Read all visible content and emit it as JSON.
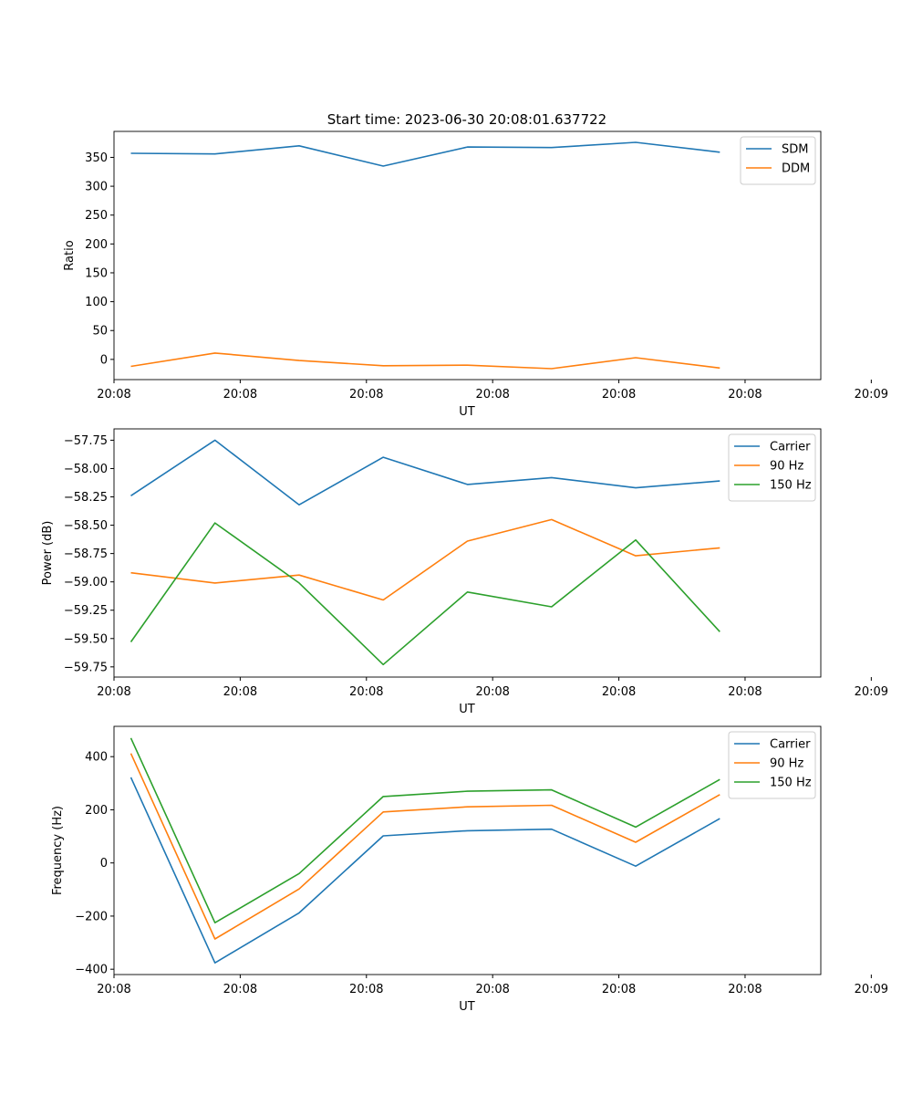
{
  "figure_title": "Start time: 2023-06-30 20:08:01.637722",
  "chart_data": [
    {
      "type": "line",
      "title": "Start time: 2023-06-30 20:08:01.637722",
      "xlabel": "UT",
      "ylabel": "Ratio",
      "x": [
        1,
        2,
        3,
        4,
        5,
        6,
        7,
        8
      ],
      "xlim": [
        0.8,
        9.2
      ],
      "xticks": [
        0.8,
        2.3,
        3.8,
        5.3,
        6.8,
        8.3,
        9.8
      ],
      "xtick_labels": [
        "20:08",
        "20:08",
        "20:08",
        "20:08",
        "20:08",
        "20:08",
        "20:09"
      ],
      "ylim": [
        -35,
        395
      ],
      "yticks": [
        0,
        50,
        100,
        150,
        200,
        250,
        300,
        350
      ],
      "legend_position": "upper right",
      "grid": false,
      "series": [
        {
          "name": "SDM",
          "color": "#1f77b4",
          "values": [
            357,
            356,
            370,
            335,
            368,
            367,
            376,
            359
          ]
        },
        {
          "name": "DDM",
          "color": "#ff7f0e",
          "values": [
            -12,
            11,
            -2,
            -11,
            -10,
            -16,
            3,
            -15
          ]
        }
      ]
    },
    {
      "type": "line",
      "xlabel": "UT",
      "ylabel": "Power (dB)",
      "x": [
        1,
        2,
        3,
        4,
        5,
        6,
        7,
        8
      ],
      "xlim": [
        0.8,
        9.2
      ],
      "xticks": [
        0.8,
        2.3,
        3.8,
        5.3,
        6.8,
        8.3,
        9.8
      ],
      "xtick_labels": [
        "20:08",
        "20:08",
        "20:08",
        "20:08",
        "20:08",
        "20:08",
        "20:09"
      ],
      "ylim": [
        -59.84,
        -57.65
      ],
      "yticks": [
        -59.75,
        -59.5,
        -59.25,
        -59.0,
        -58.75,
        -58.5,
        -58.25,
        -58.0,
        -57.75
      ],
      "ytick_labels": [
        "−59.75",
        "−59.50",
        "−59.25",
        "−59.00",
        "−58.75",
        "−58.50",
        "−58.25",
        "−58.00",
        "−57.75"
      ],
      "legend_position": "upper right",
      "grid": false,
      "series": [
        {
          "name": "Carrier",
          "color": "#1f77b4",
          "values": [
            -58.24,
            -57.75,
            -58.32,
            -57.9,
            -58.14,
            -58.08,
            -58.17,
            -58.11
          ]
        },
        {
          "name": "90 Hz",
          "color": "#ff7f0e",
          "values": [
            -58.92,
            -59.01,
            -58.94,
            -59.16,
            -58.64,
            -58.45,
            -58.77,
            -58.7
          ]
        },
        {
          "name": "150 Hz",
          "color": "#2ca02c",
          "values": [
            -59.53,
            -58.48,
            -59.01,
            -59.73,
            -59.09,
            -59.22,
            -58.63,
            -59.44
          ]
        }
      ]
    },
    {
      "type": "line",
      "xlabel": "UT",
      "ylabel": "Frequency (Hz)",
      "x": [
        1,
        2,
        3,
        4,
        5,
        6,
        7,
        8
      ],
      "xlim": [
        0.8,
        9.2
      ],
      "xticks": [
        0.8,
        2.3,
        3.8,
        5.3,
        6.8,
        8.3,
        9.8
      ],
      "xtick_labels": [
        "20:08",
        "20:08",
        "20:08",
        "20:08",
        "20:08",
        "20:08",
        "20:09"
      ],
      "ylim": [
        -420,
        514
      ],
      "yticks": [
        -400,
        -200,
        0,
        200,
        400
      ],
      "ytick_labels": [
        "−400",
        "−200",
        "0",
        "200",
        "400"
      ],
      "legend_position": "upper right",
      "grid": false,
      "series": [
        {
          "name": "Carrier",
          "color": "#1f77b4",
          "values": [
            322,
            -376,
            -188,
            102,
            121,
            127,
            -12,
            167
          ]
        },
        {
          "name": "90 Hz",
          "color": "#ff7f0e",
          "values": [
            412,
            -286,
            -98,
            192,
            211,
            217,
            78,
            257
          ]
        },
        {
          "name": "150 Hz",
          "color": "#2ca02c",
          "values": [
            470,
            -225,
            -40,
            250,
            270,
            275,
            135,
            314
          ]
        }
      ]
    }
  ]
}
